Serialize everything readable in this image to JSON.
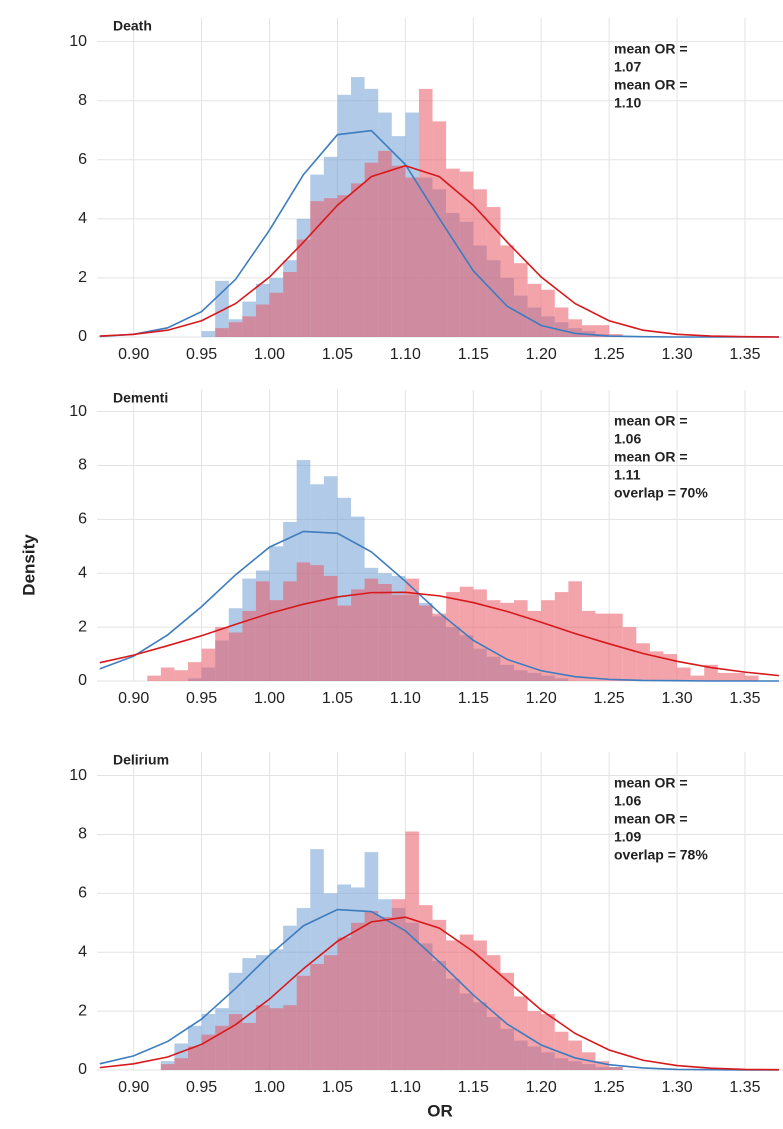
{
  "ylabel": "Density",
  "xlabel": "OR",
  "chart_data": [
    {
      "type": "histogram",
      "title": "Death",
      "xlim": [
        0.873,
        1.378
      ],
      "ylim": [
        0,
        10.8
      ],
      "xticks": [
        {
          "value": 0.9,
          "label": "0.90"
        },
        {
          "value": 0.95,
          "label": "0.95"
        },
        {
          "value": 1.0,
          "label": "1.00"
        },
        {
          "value": 1.05,
          "label": "1.05"
        },
        {
          "value": 1.1,
          "label": "1.10"
        },
        {
          "value": 1.15,
          "label": "1.15"
        },
        {
          "value": 1.2,
          "label": "1.20"
        },
        {
          "value": 1.25,
          "label": "1.25"
        },
        {
          "value": 1.3,
          "label": "1.30"
        },
        {
          "value": 1.35,
          "label": "1.35"
        }
      ],
      "yticks": [
        0,
        2,
        4,
        6,
        8,
        10
      ],
      "grid": true,
      "bins": [
        0.9,
        0.91,
        0.92,
        0.93,
        0.94,
        0.95,
        0.96,
        0.97,
        0.98,
        0.99,
        1.0,
        1.01,
        1.02,
        1.03,
        1.04,
        1.05,
        1.06,
        1.07,
        1.08,
        1.09,
        1.1,
        1.11,
        1.12,
        1.13,
        1.14,
        1.15,
        1.16,
        1.17,
        1.18,
        1.19,
        1.2,
        1.21,
        1.22,
        1.23,
        1.24,
        1.25,
        1.26,
        1.27,
        1.28,
        1.29,
        1.3,
        1.31,
        1.32,
        1.33,
        1.34,
        1.35,
        1.36
      ],
      "series": [
        {
          "color": "#6f9fd3",
          "values": [
            0,
            0,
            0,
            0,
            0,
            0.2,
            1.9,
            0.6,
            1.2,
            1.8,
            2.0,
            2.6,
            4.0,
            5.5,
            6.1,
            8.2,
            8.8,
            8.4,
            7.6,
            6.8,
            7.6,
            5.4,
            5.0,
            4.2,
            3.9,
            3.1,
            2.6,
            2.0,
            1.4,
            1.0,
            0.7,
            0.5,
            0.3,
            0.2,
            0.1,
            0,
            0,
            0,
            0,
            0,
            0,
            0,
            0,
            0,
            0,
            0
          ]
        },
        {
          "color": "#ea5a66",
          "values": [
            0,
            0,
            0,
            0,
            0,
            0,
            0.3,
            0.5,
            0.7,
            1.1,
            1.5,
            2.2,
            3.3,
            4.6,
            4.7,
            4.8,
            5.2,
            5.9,
            6.3,
            5.8,
            5.4,
            8.4,
            7.3,
            5.7,
            5.6,
            5.0,
            4.4,
            3.1,
            2.5,
            1.8,
            1.6,
            1.0,
            0.6,
            0.4,
            0.4,
            0.1,
            0,
            0,
            0,
            0,
            0,
            0,
            0,
            0,
            0,
            0
          ]
        }
      ],
      "curves": [
        {
          "color": "#3d7cbf",
          "x": [
            0.875,
            0.9,
            0.925,
            0.95,
            0.975,
            1.0,
            1.025,
            1.05,
            1.075,
            1.1,
            1.125,
            1.15,
            1.175,
            1.2,
            1.225,
            1.25,
            1.275,
            1.3,
            1.325,
            1.35,
            1.375
          ],
          "values": [
            0.02,
            0.09,
            0.31,
            0.86,
            1.95,
            3.62,
            5.5,
            6.85,
            6.99,
            5.84,
            4.01,
            2.24,
            1.04,
            0.39,
            0.12,
            0.03,
            0.01,
            0,
            0,
            0,
            0
          ]
        },
        {
          "color": "#d7191c",
          "x": [
            0.875,
            0.9,
            0.925,
            0.95,
            0.975,
            1.0,
            1.025,
            1.05,
            1.075,
            1.1,
            1.125,
            1.15,
            1.175,
            1.2,
            1.225,
            1.25,
            1.275,
            1.3,
            1.325,
            1.35,
            1.375
          ],
          "values": [
            0.03,
            0.09,
            0.23,
            0.55,
            1.13,
            2.03,
            3.21,
            4.46,
            5.43,
            5.8,
            5.43,
            4.46,
            3.21,
            2.03,
            1.13,
            0.55,
            0.23,
            0.09,
            0.03,
            0.01,
            0
          ]
        }
      ],
      "annotations": [
        {
          "text": "mean OR =",
          "color": "#3d7cbf"
        },
        {
          "text": "1.07",
          "color": "#333333"
        },
        {
          "text": "mean OR =",
          "color": "#d7191c"
        },
        {
          "text": "1.10",
          "color": "#333333"
        }
      ]
    },
    {
      "type": "histogram",
      "title": "Dementi",
      "xlim": [
        0.873,
        1.378
      ],
      "ylim": [
        0,
        10.8
      ],
      "xticks": [
        {
          "value": 0.9,
          "label": "0.90"
        },
        {
          "value": 0.95,
          "label": "0.95"
        },
        {
          "value": 1.0,
          "label": "1.00"
        },
        {
          "value": 1.05,
          "label": "1.05"
        },
        {
          "value": 1.1,
          "label": "1.10"
        },
        {
          "value": 1.15,
          "label": "1.15"
        },
        {
          "value": 1.2,
          "label": "1.20"
        },
        {
          "value": 1.25,
          "label": "1.25"
        },
        {
          "value": 1.3,
          "label": "1.30"
        },
        {
          "value": 1.35,
          "label": "1.35"
        }
      ],
      "yticks": [
        0,
        2,
        4,
        6,
        8,
        10
      ],
      "grid": true,
      "bins": [
        0.9,
        0.91,
        0.92,
        0.93,
        0.94,
        0.95,
        0.96,
        0.97,
        0.98,
        0.99,
        1.0,
        1.01,
        1.02,
        1.03,
        1.04,
        1.05,
        1.06,
        1.07,
        1.08,
        1.09,
        1.1,
        1.11,
        1.12,
        1.13,
        1.14,
        1.15,
        1.16,
        1.17,
        1.18,
        1.19,
        1.2,
        1.21,
        1.22,
        1.23,
        1.24,
        1.25,
        1.26,
        1.27,
        1.28,
        1.29,
        1.3,
        1.31,
        1.32,
        1.33,
        1.34,
        1.35,
        1.36
      ],
      "series": [
        {
          "color": "#6f9fd3",
          "values": [
            0,
            0,
            0,
            0,
            0.1,
            0.5,
            1.5,
            2.7,
            3.8,
            4.1,
            5.0,
            5.9,
            8.2,
            7.3,
            7.6,
            6.8,
            6.1,
            4.2,
            4.0,
            3.9,
            3.2,
            2.9,
            2.4,
            2.0,
            1.7,
            1.2,
            0.9,
            0.6,
            0.4,
            0.3,
            0.2,
            0.1,
            0,
            0,
            0,
            0,
            0,
            0,
            0,
            0,
            0,
            0,
            0,
            0,
            0,
            0
          ]
        },
        {
          "color": "#ea5a66",
          "values": [
            0,
            0.2,
            0.5,
            0.4,
            0.7,
            1.2,
            2.0,
            1.8,
            2.6,
            3.7,
            3.0,
            3.7,
            4.4,
            4.3,
            3.9,
            2.8,
            3.4,
            3.8,
            3.6,
            3.2,
            3.8,
            2.8,
            2.5,
            3.3,
            3.5,
            3.4,
            3.0,
            2.9,
            3.0,
            2.6,
            3.0,
            3.3,
            3.7,
            2.6,
            2.5,
            2.5,
            2.0,
            1.4,
            1.1,
            1.0,
            0.5,
            0.2,
            0.6,
            0.3,
            0.3,
            0.2
          ]
        }
      ],
      "curves": [
        {
          "color": "#3d7cbf",
          "x": [
            0.875,
            0.9,
            0.925,
            0.95,
            0.975,
            1.0,
            1.025,
            1.05,
            1.075,
            1.1,
            1.125,
            1.15,
            1.175,
            1.2,
            1.225,
            1.25,
            1.275,
            1.3,
            1.325,
            1.35,
            1.375
          ],
          "values": [
            0.45,
            0.92,
            1.71,
            2.76,
            3.94,
            4.97,
            5.55,
            5.48,
            4.79,
            3.7,
            2.53,
            1.51,
            0.8,
            0.38,
            0.16,
            0.06,
            0.02,
            0.01,
            0,
            0,
            0
          ]
        },
        {
          "color": "#d7191c",
          "x": [
            0.875,
            0.9,
            0.925,
            0.95,
            0.975,
            1.0,
            1.025,
            1.05,
            1.075,
            1.1,
            1.125,
            1.15,
            1.175,
            1.2,
            1.225,
            1.25,
            1.275,
            1.3,
            1.325,
            1.35,
            1.375
          ],
          "values": [
            0.68,
            0.96,
            1.31,
            1.68,
            2.1,
            2.51,
            2.85,
            3.12,
            3.28,
            3.29,
            3.16,
            2.91,
            2.58,
            2.18,
            1.76,
            1.38,
            1.02,
            0.73,
            0.5,
            0.33,
            0.2
          ]
        }
      ],
      "annotations": [
        {
          "text": "mean OR =",
          "color": "#3d7cbf"
        },
        {
          "text": "1.06",
          "color": "#333333"
        },
        {
          "text": "mean OR =",
          "color": "#d7191c"
        },
        {
          "text": "1.11",
          "color": "#333333"
        },
        {
          "text": "overlap = 70%",
          "color": "#333333"
        }
      ]
    },
    {
      "type": "histogram",
      "title": "Delirium",
      "xlim": [
        0.873,
        1.378
      ],
      "ylim": [
        0,
        10.8
      ],
      "xticks": [
        {
          "value": 0.9,
          "label": "0.90"
        },
        {
          "value": 0.95,
          "label": "0.95"
        },
        {
          "value": 1.0,
          "label": "1.00"
        },
        {
          "value": 1.05,
          "label": "1.05"
        },
        {
          "value": 1.1,
          "label": "1.10"
        },
        {
          "value": 1.15,
          "label": "1.15"
        },
        {
          "value": 1.2,
          "label": "1.20"
        },
        {
          "value": 1.25,
          "label": "1.25"
        },
        {
          "value": 1.3,
          "label": "1.30"
        },
        {
          "value": 1.35,
          "label": "1.35"
        }
      ],
      "yticks": [
        0,
        2,
        4,
        6,
        8,
        10
      ],
      "grid": true,
      "bins": [
        0.9,
        0.91,
        0.92,
        0.93,
        0.94,
        0.95,
        0.96,
        0.97,
        0.98,
        0.99,
        1.0,
        1.01,
        1.02,
        1.03,
        1.04,
        1.05,
        1.06,
        1.07,
        1.08,
        1.09,
        1.1,
        1.11,
        1.12,
        1.13,
        1.14,
        1.15,
        1.16,
        1.17,
        1.18,
        1.19,
        1.2,
        1.21,
        1.22,
        1.23,
        1.24,
        1.25,
        1.26,
        1.27,
        1.28,
        1.29,
        1.3,
        1.31,
        1.32,
        1.33,
        1.34,
        1.35,
        1.36
      ],
      "series": [
        {
          "color": "#6f9fd3",
          "values": [
            0,
            0,
            0.3,
            0.9,
            1.5,
            1.9,
            2.1,
            3.3,
            3.8,
            3.9,
            4.1,
            4.9,
            5.5,
            7.5,
            6.0,
            6.3,
            6.2,
            7.4,
            5.8,
            5.5,
            5.0,
            4.3,
            3.7,
            3.1,
            2.6,
            2.3,
            1.8,
            1.4,
            1.0,
            0.8,
            0.6,
            0.4,
            0.3,
            0.2,
            0.1,
            0.1,
            0,
            0,
            0,
            0,
            0,
            0,
            0,
            0,
            0,
            0
          ]
        },
        {
          "color": "#ea5a66",
          "values": [
            0,
            0,
            0.2,
            0.4,
            0.8,
            1.2,
            1.5,
            1.9,
            1.6,
            2.2,
            2.1,
            2.2,
            3.2,
            3.6,
            3.9,
            4.5,
            5.0,
            5.4,
            5.2,
            5.8,
            8.1,
            5.6,
            5.1,
            4.4,
            4.6,
            4.4,
            3.9,
            3.3,
            2.5,
            2.0,
            1.9,
            1.3,
            1.0,
            0.6,
            0.3,
            0.1,
            0,
            0,
            0,
            0,
            0,
            0,
            0,
            0,
            0,
            0
          ]
        }
      ],
      "curves": [
        {
          "color": "#3d7cbf",
          "x": [
            0.875,
            0.9,
            0.925,
            0.95,
            0.975,
            1.0,
            1.025,
            1.05,
            1.075,
            1.1,
            1.125,
            1.15,
            1.175,
            1.2,
            1.225,
            1.25,
            1.275,
            1.3,
            1.325,
            1.35,
            1.375
          ],
          "values": [
            0.21,
            0.48,
            0.97,
            1.73,
            2.77,
            3.9,
            4.9,
            5.45,
            5.38,
            4.73,
            3.67,
            2.55,
            1.56,
            0.85,
            0.41,
            0.18,
            0.07,
            0.02,
            0.01,
            0,
            0
          ]
        },
        {
          "color": "#d7191c",
          "x": [
            0.875,
            0.9,
            0.925,
            0.95,
            0.975,
            1.0,
            1.025,
            1.05,
            1.075,
            1.1,
            1.125,
            1.15,
            1.175,
            1.2,
            1.225,
            1.25,
            1.275,
            1.3,
            1.325,
            1.35,
            1.375
          ],
          "values": [
            0.08,
            0.21,
            0.44,
            0.87,
            1.54,
            2.41,
            3.44,
            4.37,
            5.03,
            5.19,
            4.82,
            4.02,
            3.03,
            2.04,
            1.24,
            0.68,
            0.33,
            0.15,
            0.06,
            0.02,
            0.01
          ]
        }
      ],
      "annotations": [
        {
          "text": "mean OR =",
          "color": "#3d7cbf"
        },
        {
          "text": "1.06",
          "color": "#333333"
        },
        {
          "text": "mean OR =",
          "color": "#d7191c"
        },
        {
          "text": "1.09",
          "color": "#333333"
        },
        {
          "text": "overlap = 78%",
          "color": "#333333"
        }
      ]
    }
  ]
}
